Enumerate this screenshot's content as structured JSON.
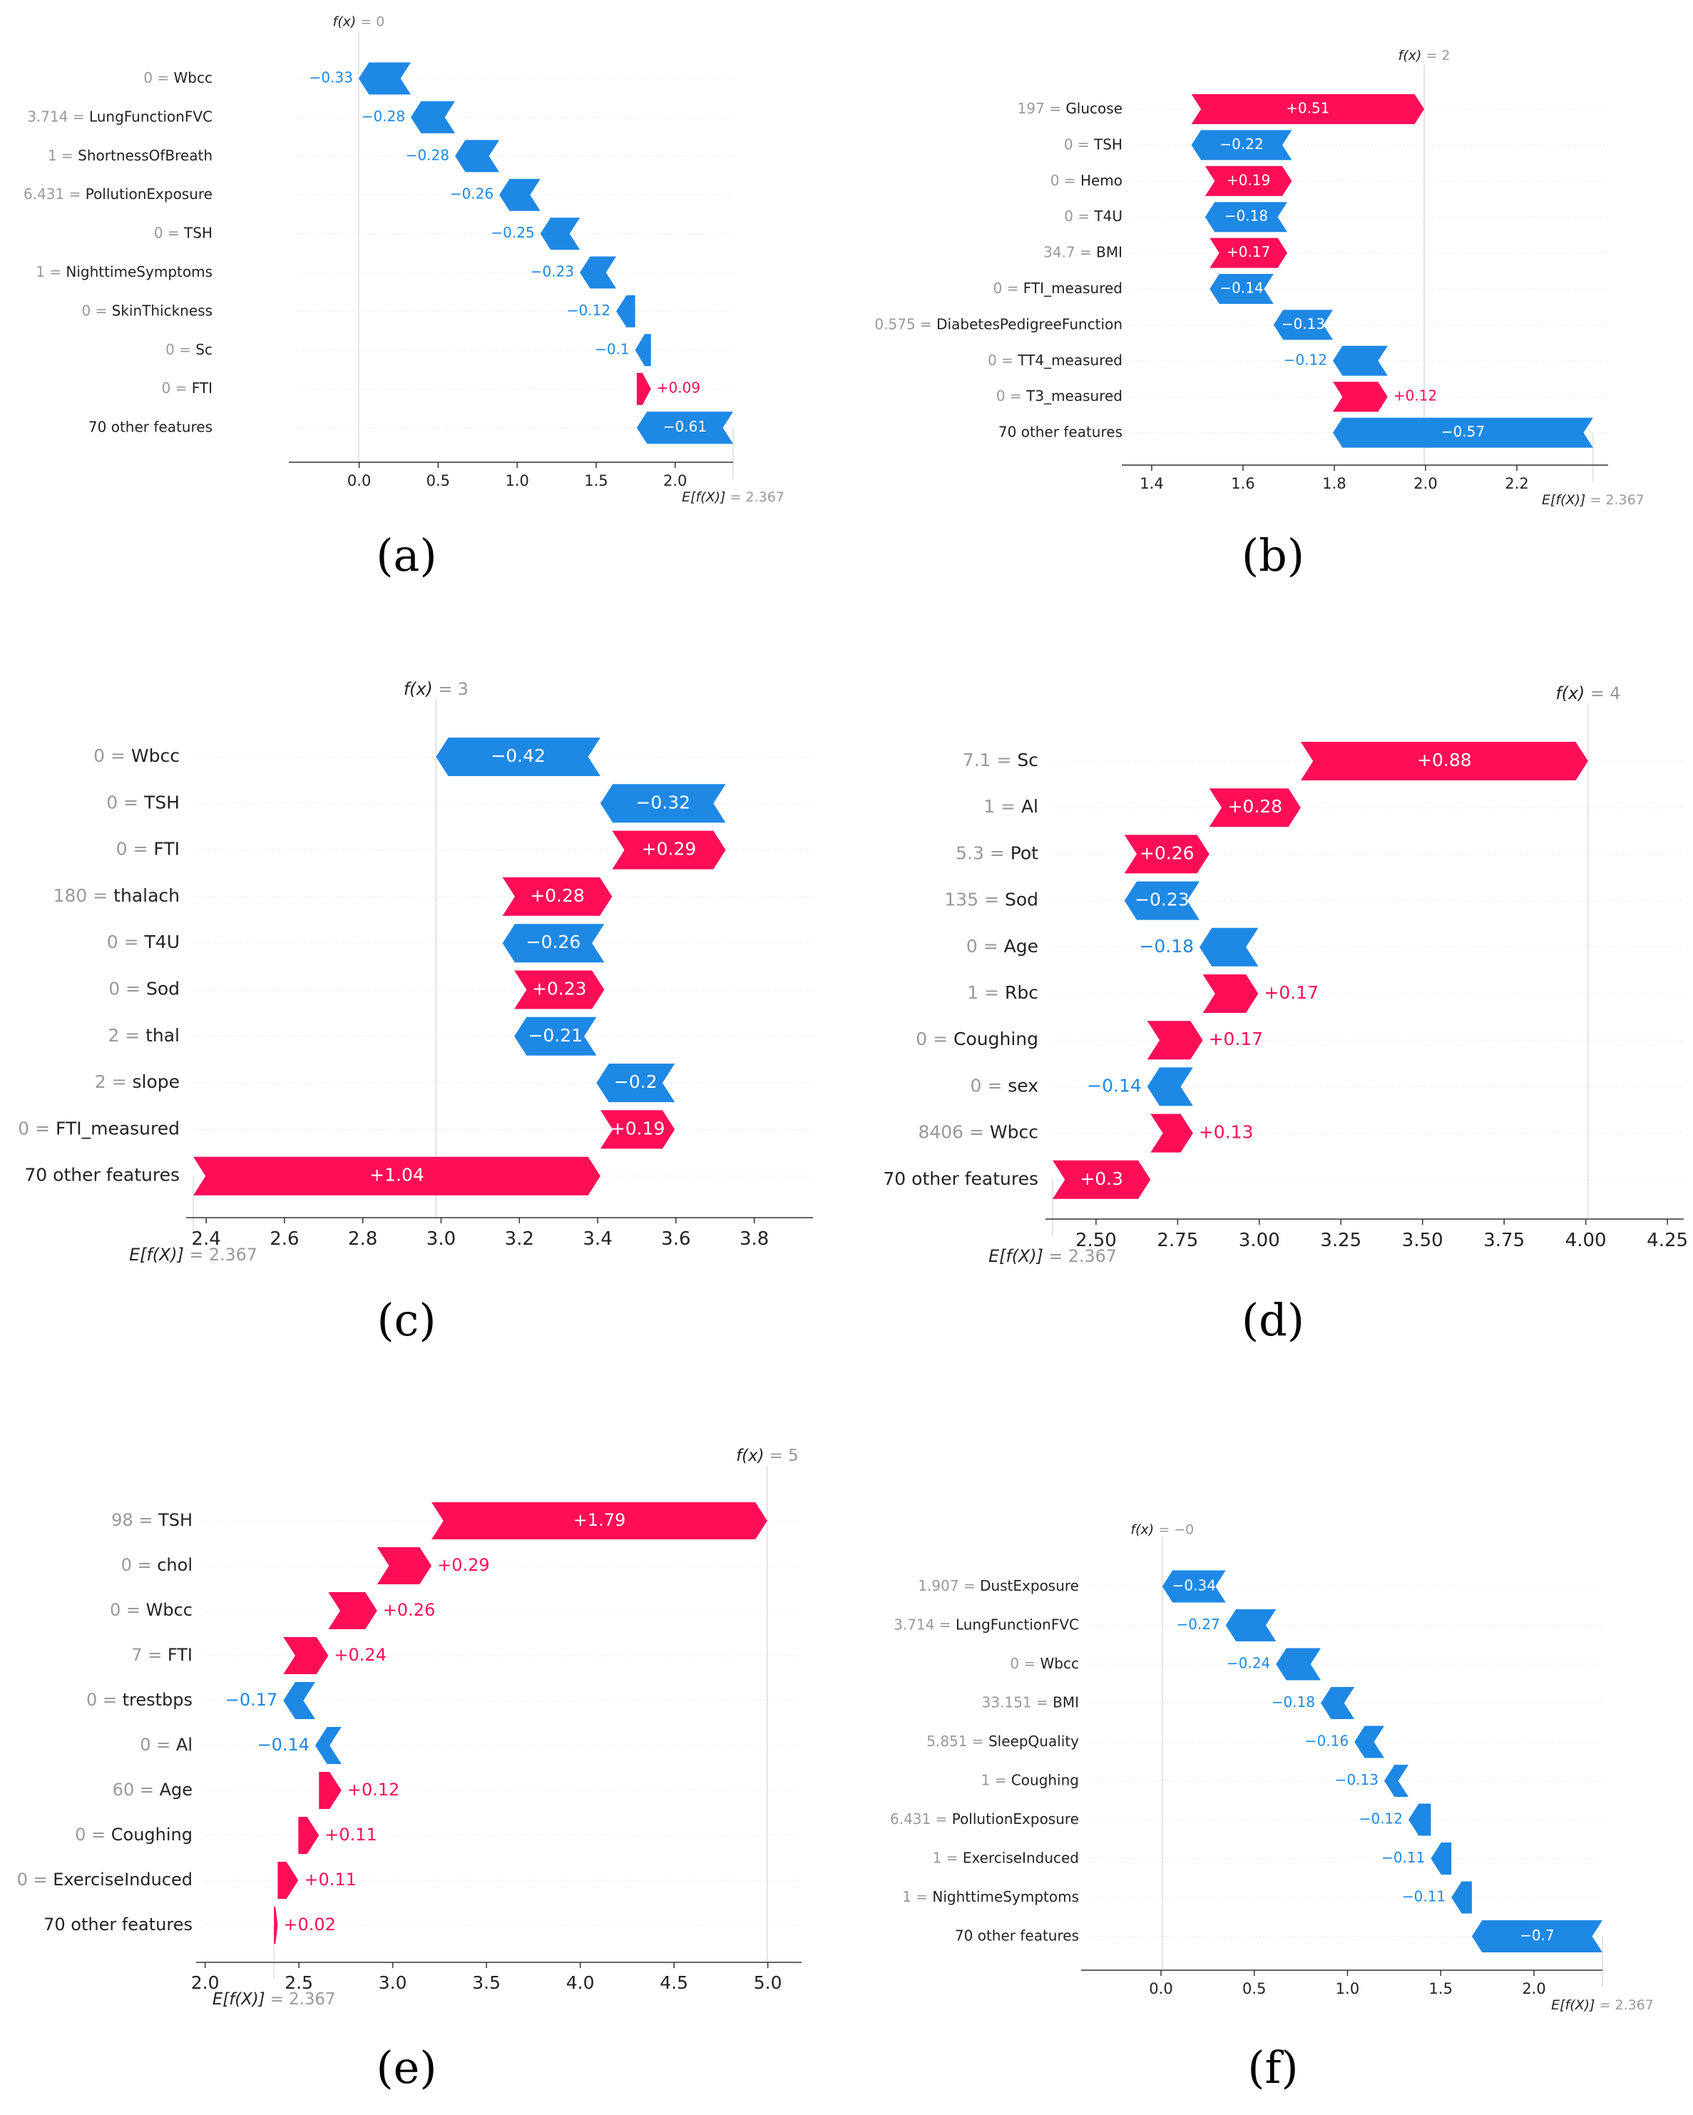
{
  "colors": {
    "positive": "#ff0d57",
    "negative": "#1e88e5",
    "axis": "#333333",
    "muted": "#999999",
    "grid": "#cccccc"
  },
  "panels": [
    {
      "label": "(a)",
      "fx_label": "f(x) = 0",
      "ex_label": "E[f(X)] = 2.367"
    },
    {
      "label": "(b)",
      "fx_label": "f(x) = 2",
      "ex_label": "E[f(X)] = 2.367"
    },
    {
      "label": "(c)",
      "fx_label": "f(x) = 3",
      "ex_label": "E[f(X)] = 2.367"
    },
    {
      "label": "(d)",
      "fx_label": "f(x) = 4",
      "ex_label": "E[f(X)] = 2.367"
    },
    {
      "label": "(e)",
      "fx_label": "f(x) = 5",
      "ex_label": "E[f(X)] = 2.367"
    },
    {
      "label": "(f)",
      "fx_label": "f(x) = −0",
      "ex_label": "E[f(X)] = 2.367"
    }
  ],
  "chart_data": [
    {
      "type": "bar",
      "subtype": "waterfall",
      "base_value": 2.367,
      "fx": 0,
      "xlim": [
        -0.4,
        2.367
      ],
      "xticks": [
        0.0,
        0.5,
        1.0,
        1.5,
        2.0
      ],
      "tick_labels": [
        "0.0",
        "0.5",
        "1.0",
        "1.5",
        "2.0"
      ],
      "rows": [
        {
          "value": "0",
          "feature": "Wbcc",
          "contribution": -0.33,
          "label": "−0.33"
        },
        {
          "value": "3.714",
          "feature": "LungFunctionFVC",
          "contribution": -0.28,
          "label": "−0.28"
        },
        {
          "value": "1",
          "feature": "ShortnessOfBreath",
          "contribution": -0.28,
          "label": "−0.28"
        },
        {
          "value": "6.431",
          "feature": "PollutionExposure",
          "contribution": -0.26,
          "label": "−0.26"
        },
        {
          "value": "0",
          "feature": "TSH",
          "contribution": -0.25,
          "label": "−0.25"
        },
        {
          "value": "1",
          "feature": "NighttimeSymptoms",
          "contribution": -0.23,
          "label": "−0.23"
        },
        {
          "value": "0",
          "feature": "SkinThickness",
          "contribution": -0.12,
          "label": "−0.12"
        },
        {
          "value": "0",
          "feature": "Sc",
          "contribution": -0.1,
          "label": "−0.1"
        },
        {
          "value": "0",
          "feature": "FTI",
          "contribution": 0.09,
          "label": "+0.09"
        },
        {
          "value": "",
          "feature": "70 other features",
          "contribution": -0.61,
          "label": "−0.61"
        }
      ]
    },
    {
      "type": "bar",
      "subtype": "waterfall",
      "base_value": 2.367,
      "fx": 2,
      "xlim": [
        1.35,
        2.4
      ],
      "xticks": [
        1.4,
        1.6,
        1.8,
        2.0,
        2.2
      ],
      "tick_labels": [
        "1.4",
        "1.6",
        "1.8",
        "2.0",
        "2.2"
      ],
      "rows": [
        {
          "value": "197",
          "feature": "Glucose",
          "contribution": 0.51,
          "label": "+0.51"
        },
        {
          "value": "0",
          "feature": "TSH",
          "contribution": -0.22,
          "label": "−0.22"
        },
        {
          "value": "0",
          "feature": "Hemo",
          "contribution": 0.19,
          "label": "+0.19"
        },
        {
          "value": "0",
          "feature": "T4U",
          "contribution": -0.18,
          "label": "−0.18"
        },
        {
          "value": "34.7",
          "feature": "BMI",
          "contribution": 0.17,
          "label": "+0.17"
        },
        {
          "value": "0",
          "feature": "FTI_measured",
          "contribution": -0.14,
          "label": "−0.14"
        },
        {
          "value": "0.575",
          "feature": "DiabetesPedigreeFunction",
          "contribution": -0.13,
          "label": "−0.13"
        },
        {
          "value": "0",
          "feature": "TT4_measured",
          "contribution": -0.12,
          "label": "−0.12"
        },
        {
          "value": "0",
          "feature": "T3_measured",
          "contribution": 0.12,
          "label": "+0.12"
        },
        {
          "value": "",
          "feature": "70 other features",
          "contribution": -0.57,
          "label": "−0.57"
        }
      ]
    },
    {
      "type": "bar",
      "subtype": "waterfall",
      "base_value": 2.367,
      "fx": 3,
      "xlim": [
        2.367,
        3.95
      ],
      "xticks": [
        2.4,
        2.6,
        2.8,
        3.0,
        3.2,
        3.4,
        3.6,
        3.8
      ],
      "tick_labels": [
        "2.4",
        "2.6",
        "2.8",
        "3.0",
        "3.2",
        "3.4",
        "3.6",
        "3.8"
      ],
      "rows": [
        {
          "value": "0",
          "feature": "Wbcc",
          "contribution": -0.42,
          "label": "−0.42"
        },
        {
          "value": "0",
          "feature": "TSH",
          "contribution": -0.32,
          "label": "−0.32"
        },
        {
          "value": "0",
          "feature": "FTI",
          "contribution": 0.29,
          "label": "+0.29"
        },
        {
          "value": "180",
          "feature": "thalach",
          "contribution": 0.28,
          "label": "+0.28"
        },
        {
          "value": "0",
          "feature": "T4U",
          "contribution": -0.26,
          "label": "−0.26"
        },
        {
          "value": "0",
          "feature": "Sod",
          "contribution": 0.23,
          "label": "+0.23"
        },
        {
          "value": "2",
          "feature": "thal",
          "contribution": -0.21,
          "label": "−0.21"
        },
        {
          "value": "2",
          "feature": "slope",
          "contribution": -0.2,
          "label": "−0.2"
        },
        {
          "value": "0",
          "feature": "FTI_measured",
          "contribution": 0.19,
          "label": "+0.19"
        },
        {
          "value": "",
          "feature": "70 other features",
          "contribution": 1.04,
          "label": "+1.04"
        }
      ]
    },
    {
      "type": "bar",
      "subtype": "waterfall",
      "base_value": 2.367,
      "fx": 4,
      "xlim": [
        2.367,
        4.3
      ],
      "xticks": [
        2.5,
        2.75,
        3.0,
        3.25,
        3.5,
        3.75,
        4.0,
        4.25
      ],
      "tick_labels": [
        "2.50",
        "2.75",
        "3.00",
        "3.25",
        "3.50",
        "3.75",
        "4.00",
        "4.25"
      ],
      "rows": [
        {
          "value": "7.1",
          "feature": "Sc",
          "contribution": 0.88,
          "label": "+0.88"
        },
        {
          "value": "1",
          "feature": "Al",
          "contribution": 0.28,
          "label": "+0.28"
        },
        {
          "value": "5.3",
          "feature": "Pot",
          "contribution": 0.26,
          "label": "+0.26"
        },
        {
          "value": "135",
          "feature": "Sod",
          "contribution": -0.23,
          "label": "−0.23"
        },
        {
          "value": "0",
          "feature": "Age",
          "contribution": -0.18,
          "label": "−0.18"
        },
        {
          "value": "1",
          "feature": "Rbc",
          "contribution": 0.17,
          "label": "+0.17"
        },
        {
          "value": "0",
          "feature": "Coughing",
          "contribution": 0.17,
          "label": "+0.17"
        },
        {
          "value": "0",
          "feature": "sex",
          "contribution": -0.14,
          "label": "−0.14"
        },
        {
          "value": "8406",
          "feature": "Wbcc",
          "contribution": 0.13,
          "label": "+0.13"
        },
        {
          "value": "",
          "feature": "70 other features",
          "contribution": 0.3,
          "label": "+0.3"
        }
      ]
    },
    {
      "type": "bar",
      "subtype": "waterfall",
      "base_value": 2.367,
      "fx": 5,
      "xlim": [
        1.99,
        5.18
      ],
      "xticks": [
        2.0,
        2.5,
        3.0,
        3.5,
        4.0,
        4.5,
        5.0
      ],
      "tick_labels": [
        "2.0",
        "2.5",
        "3.0",
        "3.5",
        "4.0",
        "4.5",
        "5.0"
      ],
      "rows": [
        {
          "value": "98",
          "feature": "TSH",
          "contribution": 1.79,
          "label": "+1.79"
        },
        {
          "value": "0",
          "feature": "chol",
          "contribution": 0.29,
          "label": "+0.29"
        },
        {
          "value": "0",
          "feature": "Wbcc",
          "contribution": 0.26,
          "label": "+0.26"
        },
        {
          "value": "7",
          "feature": "FTI",
          "contribution": 0.24,
          "label": "+0.24"
        },
        {
          "value": "0",
          "feature": "trestbps",
          "contribution": -0.17,
          "label": "−0.17"
        },
        {
          "value": "0",
          "feature": "Al",
          "contribution": -0.14,
          "label": "−0.14"
        },
        {
          "value": "60",
          "feature": "Age",
          "contribution": 0.12,
          "label": "+0.12"
        },
        {
          "value": "0",
          "feature": "Coughing",
          "contribution": 0.11,
          "label": "+0.11"
        },
        {
          "value": "0",
          "feature": "ExerciseInduced",
          "contribution": 0.11,
          "label": "+0.11"
        },
        {
          "value": "",
          "feature": "70 other features",
          "contribution": 0.02,
          "label": "+0.02"
        }
      ]
    },
    {
      "type": "bar",
      "subtype": "waterfall",
      "base_value": 2.367,
      "fx": 0,
      "xlim": [
        -0.39,
        2.367
      ],
      "xticks": [
        0.0,
        0.5,
        1.0,
        1.5,
        2.0
      ],
      "tick_labels": [
        "0.0",
        "0.5",
        "1.0",
        "1.5",
        "2.0"
      ],
      "rows": [
        {
          "value": "1.907",
          "feature": "DustExposure",
          "contribution": -0.34,
          "label": "−0.34"
        },
        {
          "value": "3.714",
          "feature": "LungFunctionFVC",
          "contribution": -0.27,
          "label": "−0.27"
        },
        {
          "value": "0",
          "feature": "Wbcc",
          "contribution": -0.24,
          "label": "−0.24"
        },
        {
          "value": "33.151",
          "feature": "BMI",
          "contribution": -0.18,
          "label": "−0.18"
        },
        {
          "value": "5.851",
          "feature": "SleepQuality",
          "contribution": -0.16,
          "label": "−0.16"
        },
        {
          "value": "1",
          "feature": "Coughing",
          "contribution": -0.13,
          "label": "−0.13"
        },
        {
          "value": "6.431",
          "feature": "PollutionExposure",
          "contribution": -0.12,
          "label": "−0.12"
        },
        {
          "value": "1",
          "feature": "ExerciseInduced",
          "contribution": -0.11,
          "label": "−0.11"
        },
        {
          "value": "1",
          "feature": "NighttimeSymptoms",
          "contribution": -0.11,
          "label": "−0.11"
        },
        {
          "value": "",
          "feature": "70 other features",
          "contribution": -0.7,
          "label": "−0.7"
        }
      ]
    }
  ]
}
